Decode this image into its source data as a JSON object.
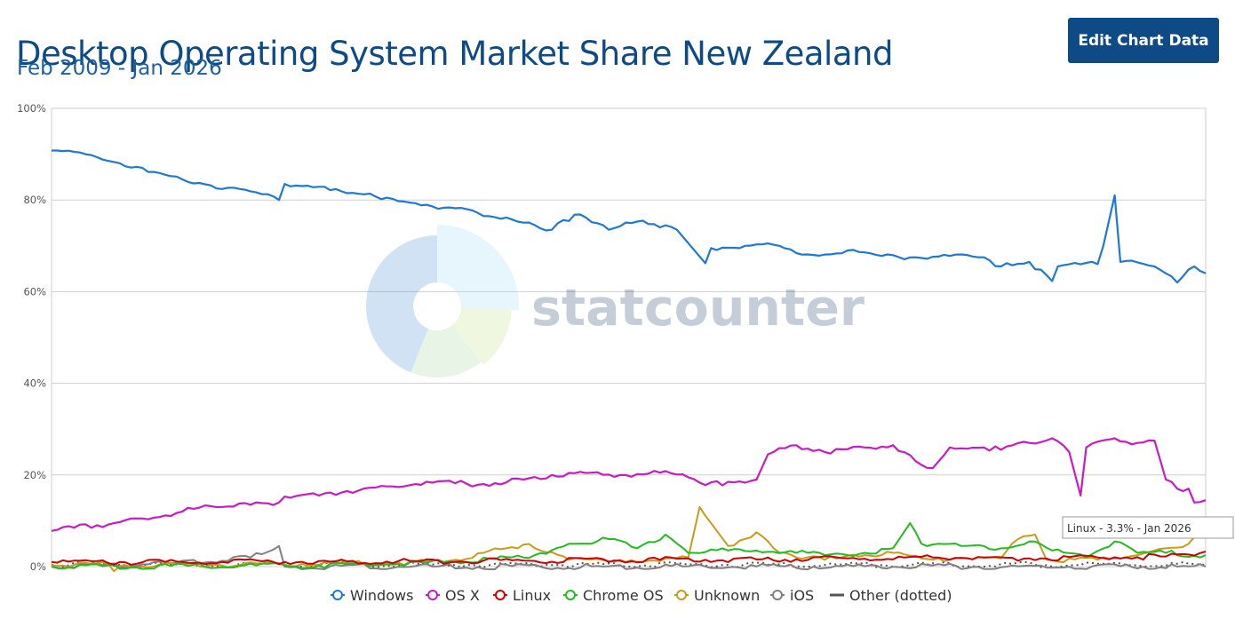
{
  "header": {
    "title": "Desktop Operating System Market Share New Zealand",
    "subtitle": "Feb 2009 - Jan 2026",
    "edit_button_label": "Edit Chart Data"
  },
  "watermark": "statcounter",
  "tooltip": "Linux - 3.3% - Jan 2026",
  "colors": {
    "Windows": "#1f78d1",
    "OS X": "#c71cc2",
    "Linux": "#cc0000",
    "Chrome OS": "#22bb22",
    "Unknown": "#c89b1c",
    "iOS": "#808080",
    "Other (dotted)": "#555555"
  },
  "legend": [
    "Windows",
    "OS X",
    "Linux",
    "Chrome OS",
    "Unknown",
    "iOS",
    "Other (dotted)"
  ],
  "chart_data": {
    "type": "line",
    "title": "Desktop Operating System Market Share New Zealand",
    "subtitle": "Feb 2009 - Jan 2026",
    "x_range": [
      "2009-02",
      "2026-01"
    ],
    "ylim": [
      0,
      100
    ],
    "y_ticks": [
      "0%",
      "20%",
      "40%",
      "60%",
      "80%",
      "100%"
    ],
    "grid": true,
    "legend_position": "bottom",
    "series": [
      {
        "name": "Windows",
        "keyframes": [
          [
            "2009-02",
            90.8
          ],
          [
            "2009-06",
            90.5
          ],
          [
            "2009-09",
            89.8
          ],
          [
            "2010-01",
            88.3
          ],
          [
            "2010-06",
            87.0
          ],
          [
            "2011-01",
            84.5
          ],
          [
            "2011-06",
            83.2
          ],
          [
            "2012-01",
            81.9
          ],
          [
            "2012-06",
            80.0
          ],
          [
            "2012-07",
            83.5
          ],
          [
            "2012-12",
            82.8
          ],
          [
            "2013-06",
            81.5
          ],
          [
            "2014-01",
            80.5
          ],
          [
            "2014-06",
            79.3
          ],
          [
            "2015-01",
            78.2
          ],
          [
            "2015-06",
            76.5
          ],
          [
            "2015-12",
            75.3
          ],
          [
            "2016-06",
            73.5
          ],
          [
            "2016-10",
            76.8
          ],
          [
            "2017-04",
            73.5
          ],
          [
            "2017-10",
            75.5
          ],
          [
            "2018-04",
            73.5
          ],
          [
            "2018-09",
            66.2
          ],
          [
            "2018-10",
            69.5
          ],
          [
            "2019-04",
            70.0
          ],
          [
            "2019-10",
            70.0
          ],
          [
            "2020-04",
            68.0
          ],
          [
            "2020-10",
            69.0
          ],
          [
            "2021-04",
            67.8
          ],
          [
            "2021-10",
            67.5
          ],
          [
            "2022-04",
            67.8
          ],
          [
            "2022-10",
            67.5
          ],
          [
            "2023-01",
            65.5
          ],
          [
            "2023-06",
            66.5
          ],
          [
            "2023-10",
            62.3
          ],
          [
            "2023-11",
            65.5
          ],
          [
            "2024-06",
            66.0
          ],
          [
            "2024-07",
            70.0
          ],
          [
            "2024-09",
            81.0
          ],
          [
            "2024-10",
            66.5
          ],
          [
            "2025-04",
            65.5
          ],
          [
            "2025-06",
            64.0
          ],
          [
            "2025-08",
            62.0
          ],
          [
            "2025-11",
            65.5
          ],
          [
            "2026-01",
            64.0
          ]
        ]
      },
      {
        "name": "OS X",
        "keyframes": [
          [
            "2009-02",
            7.8
          ],
          [
            "2009-06",
            8.5
          ],
          [
            "2010-01",
            9.5
          ],
          [
            "2010-06",
            10.5
          ],
          [
            "2011-01",
            12.0
          ],
          [
            "2011-06",
            13.2
          ],
          [
            "2012-01",
            13.5
          ],
          [
            "2012-06",
            14.0
          ],
          [
            "2012-07",
            15.3
          ],
          [
            "2013-01",
            15.5
          ],
          [
            "2013-06",
            16.5
          ],
          [
            "2014-01",
            17.5
          ],
          [
            "2014-06",
            18.0
          ],
          [
            "2015-01",
            18.2
          ],
          [
            "2015-06",
            18.0
          ],
          [
            "2016-01",
            19.0
          ],
          [
            "2016-06",
            20.0
          ],
          [
            "2017-01",
            20.5
          ],
          [
            "2017-06",
            20.0
          ],
          [
            "2018-01",
            20.5
          ],
          [
            "2018-06",
            19.5
          ],
          [
            "2018-09",
            17.8
          ],
          [
            "2019-01",
            18.5
          ],
          [
            "2019-06",
            19.0
          ],
          [
            "2019-08",
            24.5
          ],
          [
            "2020-01",
            26.5
          ],
          [
            "2020-06",
            25.0
          ],
          [
            "2021-01",
            26.0
          ],
          [
            "2021-06",
            26.5
          ],
          [
            "2021-10",
            23.0
          ],
          [
            "2022-01",
            21.5
          ],
          [
            "2022-04",
            26.0
          ],
          [
            "2022-10",
            26.0
          ],
          [
            "2023-01",
            25.5
          ],
          [
            "2023-06",
            27.0
          ],
          [
            "2023-10",
            28.0
          ],
          [
            "2024-01",
            25.0
          ],
          [
            "2024-03",
            15.5
          ],
          [
            "2024-04",
            26.0
          ],
          [
            "2024-09",
            28.0
          ],
          [
            "2025-01",
            27.0
          ],
          [
            "2025-04",
            27.5
          ],
          [
            "2025-06",
            19.0
          ],
          [
            "2025-08",
            17.0
          ],
          [
            "2025-10",
            17.0
          ],
          [
            "2025-11",
            14.0
          ],
          [
            "2026-01",
            14.5
          ]
        ]
      },
      {
        "name": "Linux",
        "keyframes": [
          [
            "2009-02",
            1.0
          ],
          [
            "2011-01",
            1.0
          ],
          [
            "2014-01",
            1.1
          ],
          [
            "2016-01",
            1.3
          ],
          [
            "2018-01",
            1.5
          ],
          [
            "2018-06",
            1.8
          ],
          [
            "2018-09",
            1.5
          ],
          [
            "2020-01",
            1.6
          ],
          [
            "2022-01",
            2.0
          ],
          [
            "2023-06",
            1.8
          ],
          [
            "2024-06",
            2.0
          ],
          [
            "2025-06",
            2.2
          ],
          [
            "2026-01",
            3.3
          ]
        ]
      },
      {
        "name": "Chrome OS",
        "keyframes": [
          [
            "2009-02",
            0.0
          ],
          [
            "2013-01",
            0.2
          ],
          [
            "2015-01",
            1.0
          ],
          [
            "2016-01",
            2.0
          ],
          [
            "2016-10",
            5.0
          ],
          [
            "2017-04",
            6.0
          ],
          [
            "2017-09",
            4.0
          ],
          [
            "2018-02",
            7.0
          ],
          [
            "2018-06",
            3.0
          ],
          [
            "2019-01",
            3.5
          ],
          [
            "2019-06",
            3.5
          ],
          [
            "2020-01",
            3.0
          ],
          [
            "2020-06",
            2.5
          ],
          [
            "2021-01",
            3.0
          ],
          [
            "2021-06",
            4.0
          ],
          [
            "2021-09",
            9.5
          ],
          [
            "2021-11",
            5.0
          ],
          [
            "2022-06",
            4.5
          ],
          [
            "2023-01",
            4.0
          ],
          [
            "2023-06",
            5.5
          ],
          [
            "2023-10",
            3.5
          ],
          [
            "2024-04",
            2.0
          ],
          [
            "2024-09",
            5.5
          ],
          [
            "2025-01",
            3.0
          ],
          [
            "2025-06",
            3.0
          ],
          [
            "2026-01",
            2.5
          ]
        ]
      },
      {
        "name": "Unknown",
        "keyframes": [
          [
            "2009-02",
            0.3
          ],
          [
            "2009-12",
            0.5
          ],
          [
            "2010-01",
            -1.0
          ],
          [
            "2010-03",
            0.3
          ],
          [
            "2012-06",
            0.5
          ],
          [
            "2014-06",
            1.0
          ],
          [
            "2015-01",
            1.5
          ],
          [
            "2015-06",
            3.0
          ],
          [
            "2015-09",
            3.8
          ],
          [
            "2016-01",
            4.8
          ],
          [
            "2016-04",
            3.5
          ],
          [
            "2016-09",
            1.5
          ],
          [
            "2017-06",
            1.5
          ],
          [
            "2018-01",
            1.2
          ],
          [
            "2018-06",
            2.0
          ],
          [
            "2018-08",
            13.0
          ],
          [
            "2018-10",
            9.5
          ],
          [
            "2019-01",
            4.5
          ],
          [
            "2019-06",
            7.5
          ],
          [
            "2019-09",
            4.0
          ],
          [
            "2020-01",
            2.0
          ],
          [
            "2020-06",
            1.5
          ],
          [
            "2021-01",
            2.5
          ],
          [
            "2021-06",
            3.0
          ],
          [
            "2022-01",
            1.5
          ],
          [
            "2022-06",
            2.0
          ],
          [
            "2023-01",
            1.8
          ],
          [
            "2023-04",
            6.0
          ],
          [
            "2023-07",
            7.0
          ],
          [
            "2023-09",
            1.5
          ],
          [
            "2024-06",
            1.5
          ],
          [
            "2025-01",
            2.5
          ],
          [
            "2025-06",
            4.0
          ],
          [
            "2025-10",
            5.0
          ],
          [
            "2026-01",
            7.5
          ]
        ]
      },
      {
        "name": "iOS",
        "keyframes": [
          [
            "2009-02",
            0.0
          ],
          [
            "2010-06",
            0.5
          ],
          [
            "2011-06",
            1.0
          ],
          [
            "2012-01",
            2.0
          ],
          [
            "2012-06",
            4.5
          ],
          [
            "2012-07",
            0.0
          ],
          [
            "2026-01",
            0.0
          ]
        ]
      },
      {
        "name": "Other (dotted)",
        "keyframes": [
          [
            "2009-02",
            0.4
          ],
          [
            "2026-01",
            0.4
          ]
        ]
      }
    ]
  }
}
